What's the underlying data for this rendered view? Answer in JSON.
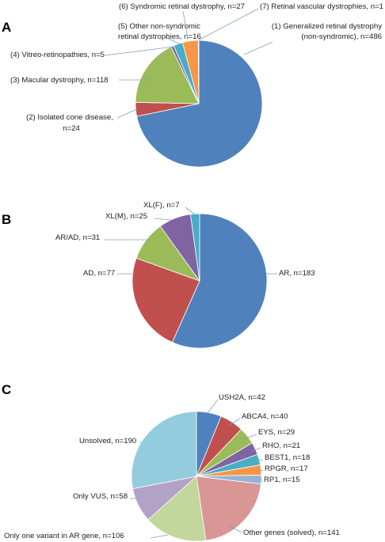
{
  "chart_data": [
    {
      "panel": "A",
      "type": "pie",
      "slices": [
        {
          "label": "(1) Generalized retinal dystrophy (non-syndromic), n=486",
          "value": 486,
          "color": "#4f81bd"
        },
        {
          "label": "(2) Isolated cone disease, n=24",
          "value": 24,
          "color": "#c0504d"
        },
        {
          "label": "(3) Macular dystrophy, n=118",
          "value": 118,
          "color": "#9bbb59"
        },
        {
          "label": "(4) Vitreo-retinopathies, n=5",
          "value": 5,
          "color": "#8064a2"
        },
        {
          "label": "(5) Other non-syndromic retinal dystrophies, n=16",
          "value": 16,
          "color": "#4bacc6"
        },
        {
          "label": "(6) Syndromic retinal dystrophy, n=27",
          "value": 27,
          "color": "#f79646"
        },
        {
          "label": "(7) Retinal vascular dystrophies, n=1",
          "value": 1,
          "color": "#2c4d75"
        }
      ]
    },
    {
      "panel": "B",
      "type": "pie",
      "slices": [
        {
          "label": "AR, n=183",
          "value": 183,
          "color": "#4f81bd"
        },
        {
          "label": "AD, n=77",
          "value": 77,
          "color": "#c0504d"
        },
        {
          "label": "AR/AD, n=31",
          "value": 31,
          "color": "#9bbb59"
        },
        {
          "label": "XL(M), n=25",
          "value": 25,
          "color": "#8064a2"
        },
        {
          "label": "XL(F), n=7",
          "value": 7,
          "color": "#4bacc6"
        }
      ]
    },
    {
      "panel": "C",
      "type": "pie",
      "slices": [
        {
          "label": "USH2A, n=42",
          "value": 42,
          "color": "#4f81bd"
        },
        {
          "label": "ABCA4, n=40",
          "value": 40,
          "color": "#c0504d"
        },
        {
          "label": "EYS, n=29",
          "value": 29,
          "color": "#9bbb59"
        },
        {
          "label": "RHO, n=21",
          "value": 21,
          "color": "#8064a2"
        },
        {
          "label": "BEST1, n=18",
          "value": 18,
          "color": "#4bacc6"
        },
        {
          "label": "RPGR, n=17",
          "value": 17,
          "color": "#f79646"
        },
        {
          "label": "RP1, n=15",
          "value": 15,
          "color": "#95b3d7"
        },
        {
          "label": "Other genes (solved), n=141",
          "value": 141,
          "color": "#d99694"
        },
        {
          "label": "Only one variant in AR gene, n=106",
          "value": 106,
          "color": "#c3d69b"
        },
        {
          "label": "Only VUS, n=58",
          "value": 58,
          "color": "#b3a2c7"
        },
        {
          "label": "Unsolved, n=190",
          "value": 190,
          "color": "#93cddd"
        }
      ]
    }
  ]
}
